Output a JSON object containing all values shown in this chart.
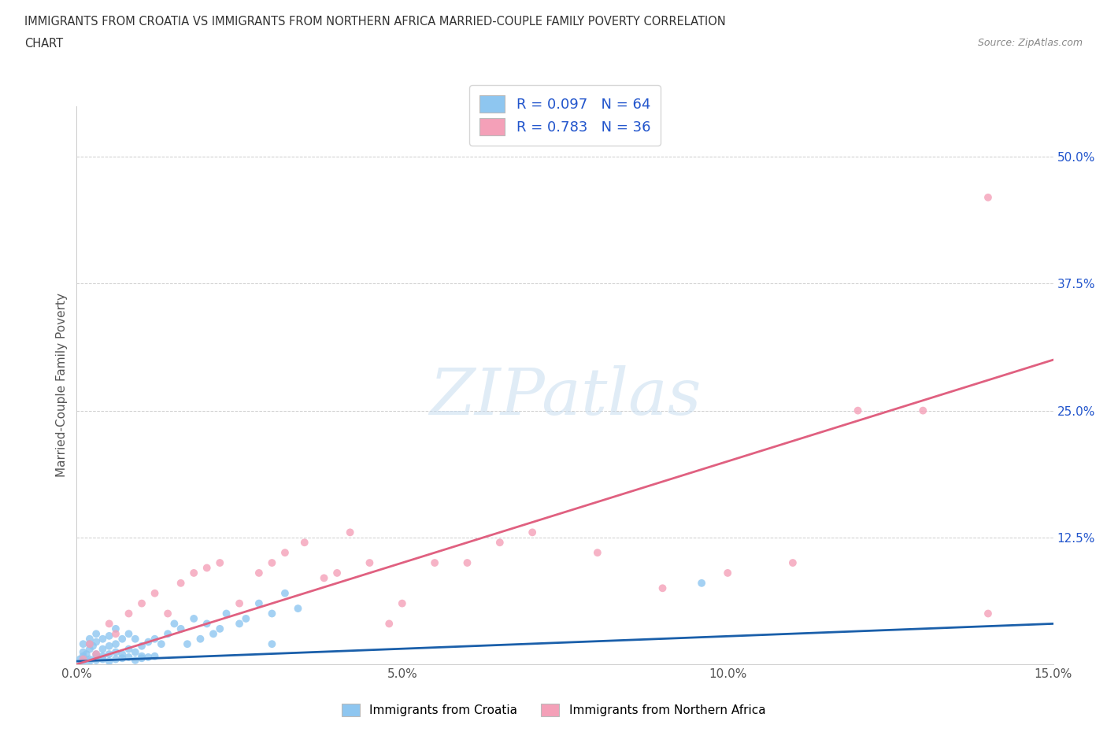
{
  "title_line1": "IMMIGRANTS FROM CROATIA VS IMMIGRANTS FROM NORTHERN AFRICA MARRIED-COUPLE FAMILY POVERTY CORRELATION",
  "title_line2": "CHART",
  "source": "Source: ZipAtlas.com",
  "ylabel": "Married-Couple Family Poverty",
  "xlim": [
    0.0,
    0.15
  ],
  "ylim": [
    0.0,
    0.55
  ],
  "xtick_vals": [
    0.0,
    0.05,
    0.1,
    0.15
  ],
  "xtick_labels": [
    "0.0%",
    "5.0%",
    "10.0%",
    "15.0%"
  ],
  "ytick_vals": [
    0.0,
    0.125,
    0.25,
    0.375,
    0.5
  ],
  "ytick_labels": [
    "",
    "12.5%",
    "25.0%",
    "37.5%",
    "50.0%"
  ],
  "croatia_color": "#8ec6f0",
  "northern_africa_color": "#f4a0b8",
  "croatia_line_color": "#1a5faa",
  "northern_africa_line_color": "#e06080",
  "R_croatia": 0.097,
  "N_croatia": 64,
  "R_northern_africa": 0.783,
  "N_northern_africa": 36,
  "legend_label_croatia": "Immigrants from Croatia",
  "legend_label_northern_africa": "Immigrants from Northern Africa",
  "croatia_x": [
    0.0005,
    0.001,
    0.001,
    0.001,
    0.0015,
    0.002,
    0.002,
    0.002,
    0.002,
    0.0025,
    0.003,
    0.003,
    0.003,
    0.003,
    0.004,
    0.004,
    0.004,
    0.005,
    0.005,
    0.005,
    0.006,
    0.006,
    0.006,
    0.007,
    0.007,
    0.008,
    0.008,
    0.009,
    0.009,
    0.01,
    0.01,
    0.011,
    0.012,
    0.013,
    0.014,
    0.015,
    0.016,
    0.017,
    0.018,
    0.019,
    0.02,
    0.021,
    0.022,
    0.023,
    0.025,
    0.026,
    0.028,
    0.03,
    0.032,
    0.034,
    0.001,
    0.002,
    0.003,
    0.004,
    0.005,
    0.006,
    0.007,
    0.008,
    0.009,
    0.01,
    0.011,
    0.012,
    0.096,
    0.03
  ],
  "croatia_y": [
    0.005,
    0.008,
    0.012,
    0.02,
    0.01,
    0.015,
    0.02,
    0.025,
    0.005,
    0.018,
    0.01,
    0.022,
    0.007,
    0.03,
    0.015,
    0.025,
    0.008,
    0.018,
    0.01,
    0.028,
    0.02,
    0.012,
    0.035,
    0.025,
    0.01,
    0.03,
    0.015,
    0.025,
    0.012,
    0.018,
    0.008,
    0.022,
    0.025,
    0.02,
    0.03,
    0.04,
    0.035,
    0.02,
    0.045,
    0.025,
    0.04,
    0.03,
    0.035,
    0.05,
    0.04,
    0.045,
    0.06,
    0.05,
    0.07,
    0.055,
    0.002,
    0.003,
    0.004,
    0.005,
    0.003,
    0.005,
    0.006,
    0.007,
    0.004,
    0.006,
    0.007,
    0.008,
    0.08,
    0.02
  ],
  "northern_africa_x": [
    0.001,
    0.002,
    0.003,
    0.005,
    0.006,
    0.008,
    0.01,
    0.012,
    0.014,
    0.016,
    0.018,
    0.02,
    0.022,
    0.025,
    0.028,
    0.03,
    0.032,
    0.035,
    0.038,
    0.04,
    0.042,
    0.045,
    0.048,
    0.05,
    0.055,
    0.06,
    0.065,
    0.07,
    0.08,
    0.09,
    0.1,
    0.11,
    0.12,
    0.13,
    0.14,
    0.14
  ],
  "northern_africa_y": [
    0.005,
    0.02,
    0.01,
    0.04,
    0.03,
    0.05,
    0.06,
    0.07,
    0.05,
    0.08,
    0.09,
    0.095,
    0.1,
    0.06,
    0.09,
    0.1,
    0.11,
    0.12,
    0.085,
    0.09,
    0.13,
    0.1,
    0.04,
    0.06,
    0.1,
    0.1,
    0.12,
    0.13,
    0.11,
    0.075,
    0.09,
    0.1,
    0.25,
    0.25,
    0.05,
    0.46
  ],
  "watermark_text": "ZIPatlas",
  "background_color": "#ffffff",
  "grid_color": "#cccccc",
  "title_color": "#333333",
  "legend_text_color": "#2255cc",
  "source_color": "#888888",
  "tick_color": "#555555"
}
